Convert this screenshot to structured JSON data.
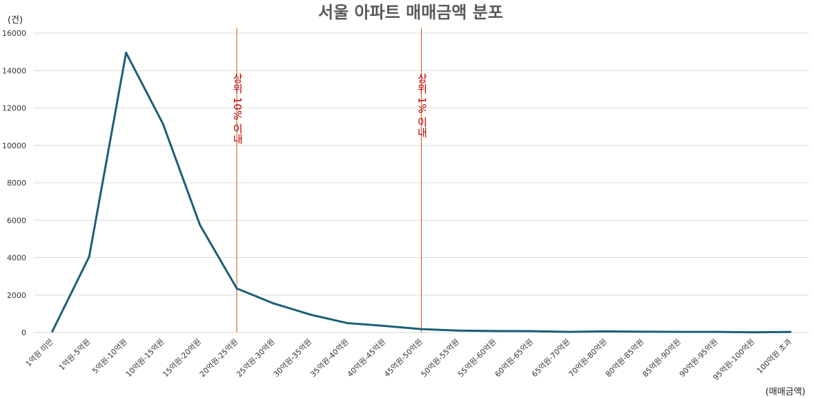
{
  "chart_data": {
    "type": "line",
    "title": "서울 아파트 매매금액 분포",
    "ylabel": "(건)",
    "xlabel": "(매매금액)",
    "ylim": [
      0,
      16000
    ],
    "yticks": [
      0,
      2000,
      4000,
      6000,
      8000,
      10000,
      12000,
      14000,
      16000
    ],
    "grid": true,
    "legend": "none",
    "categories": [
      "1억원 미만",
      "1억원-5억원",
      "5억원-10억원",
      "10억원-15억원",
      "15억원-20억원",
      "20억원-25억원",
      "25억원-30억원",
      "30억원-35억원",
      "35억원-40억원",
      "40억원-45억원",
      "45억원-50억원",
      "50억원-55억원",
      "55억원-60억원",
      "60억원-65억원",
      "65억원-70억원",
      "70억원-80억원",
      "80억원-85억원",
      "85억원-90억원",
      "90억원-95억원",
      "95억원-100억원",
      "100억원 초과"
    ],
    "series": [
      {
        "values": [
          50,
          4050,
          14950,
          11150,
          5750,
          2350,
          1550,
          950,
          500,
          350,
          180,
          100,
          80,
          70,
          30,
          60,
          40,
          30,
          30,
          10,
          30
        ]
      }
    ],
    "annotations": [
      {
        "text": "상위 10% 이내",
        "at_category": 5
      },
      {
        "text": "상위 1% 이내",
        "at_category": 10
      }
    ],
    "colors": {
      "line": "#1b5e77",
      "annotation_line": "#c55a11",
      "annotation_text": "#c00000",
      "grid": "#d9d9d9"
    }
  }
}
